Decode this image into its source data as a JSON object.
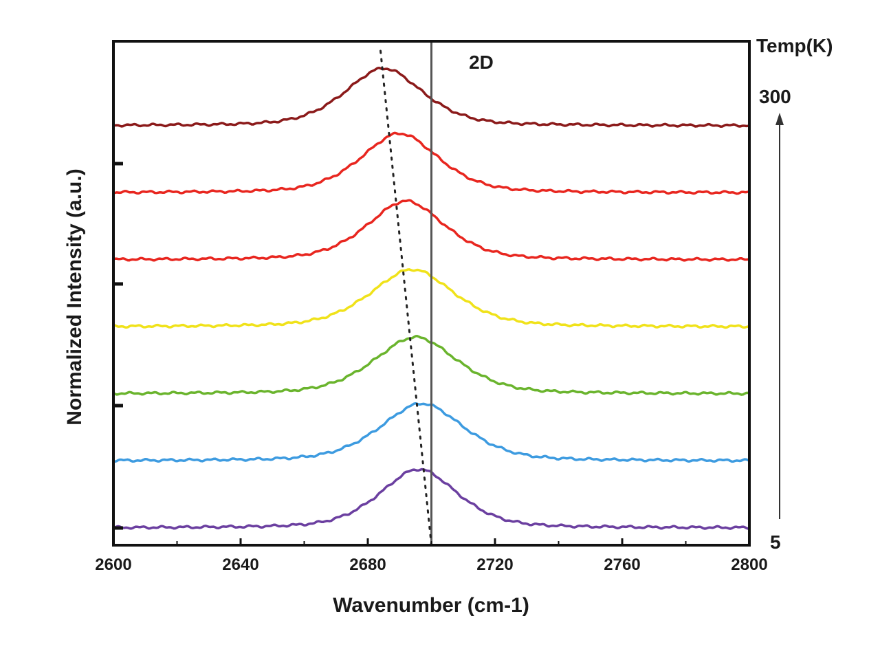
{
  "chart_data": {
    "type": "line",
    "title": "",
    "xlabel": "Wavenumber (cm-1)",
    "ylabel": "Normalized Intensity (a.u.)",
    "xlim": [
      2600,
      2800
    ],
    "x_ticks": [
      2600,
      2640,
      2680,
      2720,
      2760,
      2800
    ],
    "y_ticks_shown": false,
    "grid": false,
    "legend": "none",
    "annotations": {
      "peak_label": "2D",
      "temp_axis_label": "Temp(K)",
      "temp_max": "300",
      "temp_min": "5"
    },
    "reference_line_x": 2700,
    "shift_trend_dotted": {
      "x_top": 2684,
      "x_bottom": 2700
    },
    "series": [
      {
        "color": "#8b1a1a",
        "offset": 6,
        "peak_center": 2685,
        "peak_height": 0.88,
        "width": 13
      },
      {
        "color": "#e8261f",
        "offset": 5,
        "peak_center": 2690,
        "peak_height": 0.91,
        "width": 13
      },
      {
        "color": "#e8261f",
        "offset": 4,
        "peak_center": 2692,
        "peak_height": 0.9,
        "width": 13
      },
      {
        "color": "#f0e21a",
        "offset": 3,
        "peak_center": 2694,
        "peak_height": 0.88,
        "width": 14
      },
      {
        "color": "#6ab42d",
        "offset": 2,
        "peak_center": 2695,
        "peak_height": 0.87,
        "width": 14
      },
      {
        "color": "#3d9be0",
        "offset": 1,
        "peak_center": 2697,
        "peak_height": 0.88,
        "width": 14
      },
      {
        "color": "#6b3fa0",
        "offset": 0,
        "peak_center": 2696,
        "peak_height": 0.9,
        "width": 13
      }
    ]
  }
}
